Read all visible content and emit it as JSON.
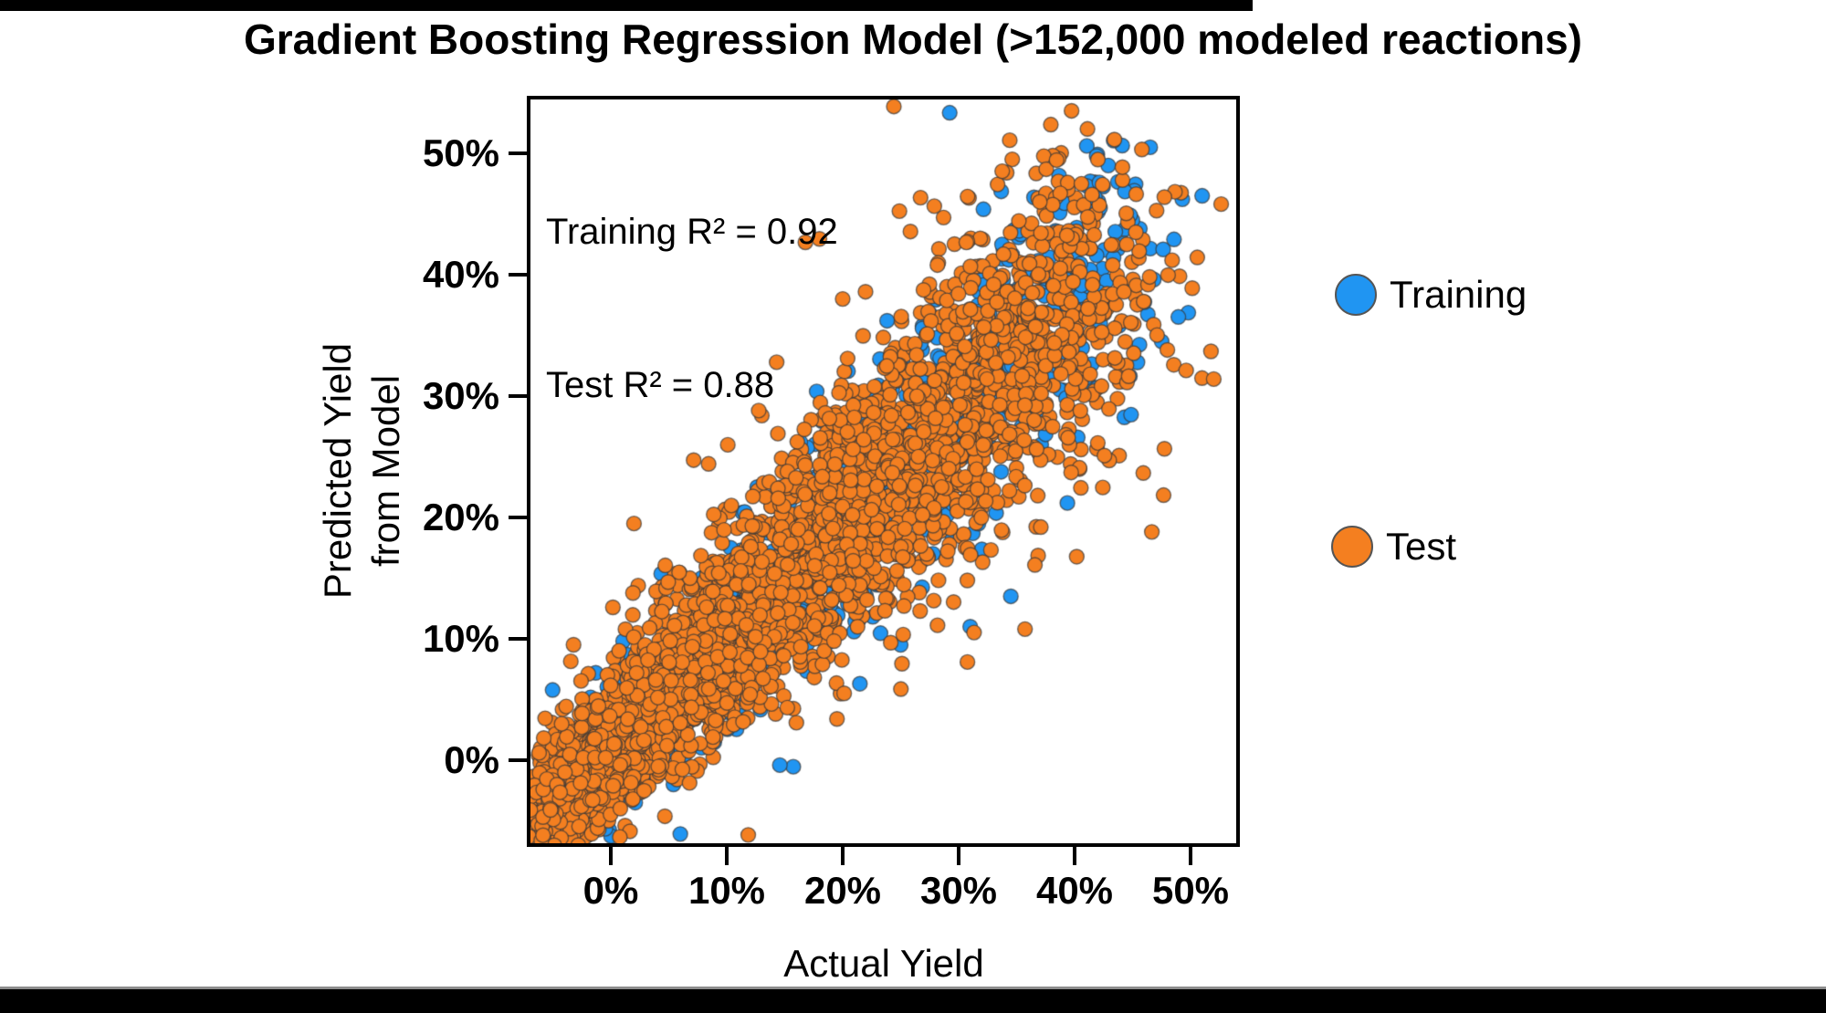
{
  "page": {
    "background": "#ffffff",
    "top_bar_color": "#000000",
    "bottom_bar_color": "#000000",
    "bottom_bar_edge_color": "#8c8c8c"
  },
  "title": "Gradient Boosting Regression Model (>152,000 modeled reactions)",
  "chart_data": {
    "type": "scatter",
    "title": "Gradient Boosting Regression Model (>152,000 modeled reactions)",
    "xlabel": "Actual Yield",
    "ylabel_line1": "Predicted Yield",
    "ylabel_line2": "from Model",
    "x_tick_labels": [
      "0%",
      "10%",
      "20%",
      "30%",
      "40%",
      "50%"
    ],
    "x_tick_values": [
      0,
      10,
      20,
      30,
      40,
      50
    ],
    "y_tick_labels": [
      "50%",
      "40%",
      "30%",
      "20%",
      "10%",
      "0%"
    ],
    "y_tick_values": [
      50,
      40,
      30,
      20,
      10,
      0
    ],
    "xlim": [
      -7.2,
      54.2
    ],
    "ylim": [
      -7.1,
      54.7
    ],
    "grid": false,
    "annotation_line1": "Training R² = 0.92",
    "annotation_line2": "Test R² = 0.88",
    "stats": {
      "training_r2": 0.92,
      "test_r2": 0.88,
      "modeled_reactions": ">152,000"
    },
    "legend_position": "right-outside",
    "legend": [
      {
        "label": "Training",
        "color": "#2095F2"
      },
      {
        "label": "Test",
        "color": "#F47F20"
      }
    ],
    "marker": {
      "radius": 8,
      "edge_color": "rgba(55,55,55,0.7)",
      "edge_width": 1.4
    },
    "seed": 1337,
    "series": [
      {
        "name": "Training",
        "color": "#2095F2",
        "n": 1500,
        "skew": 1.5,
        "bmin": -6,
        "brange": 50,
        "slope": 0.96,
        "intercept": 0.4,
        "noise_base": 1.6,
        "noise_growth": 4.2,
        "x_noise_ratio": 0.55,
        "outlier_frac": 0.06,
        "outlier_mult": 2.0,
        "extra_points": [
          [
            51.0,
            46.5
          ],
          [
            40.5,
            40.9
          ],
          [
            31.0,
            11.0
          ],
          [
            34.5,
            13.5
          ],
          [
            25.0,
            9.5
          ],
          [
            -1.3,
            7.2
          ]
        ]
      },
      {
        "name": "Test",
        "color": "#F47F20",
        "n": 3600,
        "skew": 1.5,
        "bmin": -6,
        "brange": 48,
        "slope": 0.92,
        "intercept": 1.0,
        "noise_base": 1.8,
        "noise_growth": 5.0,
        "x_noise_ratio": 0.6,
        "outlier_frac": 0.07,
        "outlier_mult": 1.9,
        "extra_points": [
          [
            41.5,
            46.6
          ],
          [
            52.0,
            31.4
          ],
          [
            37.0,
            46.0
          ],
          [
            44.5,
            42.5
          ],
          [
            48.0,
            33.8
          ],
          [
            2.0,
            19.5
          ],
          [
            -5.2,
            -4.1
          ],
          [
            20.0,
            38.0
          ]
        ]
      }
    ]
  }
}
